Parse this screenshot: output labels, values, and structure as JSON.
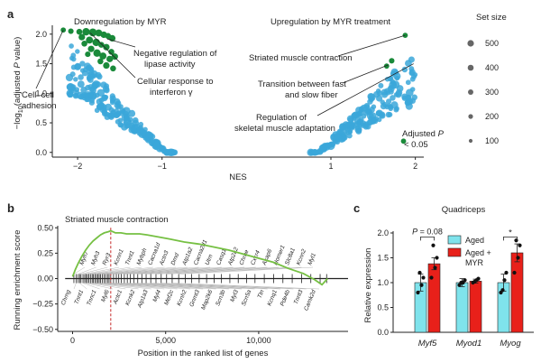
{
  "chart_data": [
    {
      "panel": "a",
      "type": "scatter",
      "xlabel": "NES",
      "ylabel": "-log10(adjusted P value)",
      "xlim": [
        -2.3,
        2.1
      ],
      "ylim": [
        -0.08,
        2.15
      ],
      "x_ticks": [
        -2,
        -1,
        1,
        2
      ],
      "y_ticks": [
        0,
        0.5,
        1.0,
        1.5,
        2.0
      ],
      "titles": {
        "left": "Downregulation by MYR",
        "right": "Upregulation by MYR treatment"
      },
      "legend": {
        "title": "Set size",
        "values": [
          500,
          400,
          300,
          200,
          100
        ],
        "position": "right"
      },
      "colors": {
        "not_significant": "#3ba7d9",
        "significant": "#1a8a3a"
      },
      "annotations": [
        {
          "text": "Negative regulation of lipase activity",
          "nes": -1.65,
          "value": 1.92
        },
        {
          "text": "Cellular response to interferon γ",
          "nes": -1.85,
          "value": 2.02
        },
        {
          "text": "Cell–cell adhesion",
          "nes": -2.17,
          "value": 2.07
        },
        {
          "text": "Striated muscle contraction",
          "nes": 1.88,
          "value": 1.98
        },
        {
          "text": "Transition between fast and slow fiber",
          "nes": 1.68,
          "value": 1.48
        },
        {
          "text": "Regulation of skeletal muscle adaptation",
          "nes": 1.98,
          "value": 1.5
        },
        {
          "text": "Adjusted P < 0.05",
          "nes": 1.86,
          "value": 0.19
        }
      ],
      "significant_points": [
        {
          "nes": -2.17,
          "value": 2.07,
          "size": 100
        },
        {
          "nes": -2.08,
          "value": 2.05,
          "size": 120
        },
        {
          "nes": -1.98,
          "value": 2.04,
          "size": 150
        },
        {
          "nes": -1.9,
          "value": 2.04,
          "size": 300
        },
        {
          "nes": -1.82,
          "value": 2.03,
          "size": 350
        },
        {
          "nes": -1.75,
          "value": 2.02,
          "size": 250
        },
        {
          "nes": -1.69,
          "value": 1.99,
          "size": 200
        },
        {
          "nes": -1.64,
          "value": 1.97,
          "size": 150
        },
        {
          "nes": -1.59,
          "value": 1.93,
          "size": 200
        },
        {
          "nes": -1.95,
          "value": 1.95,
          "size": 200
        },
        {
          "nes": -1.86,
          "value": 1.9,
          "size": 250
        },
        {
          "nes": -1.78,
          "value": 1.86,
          "size": 300
        },
        {
          "nes": -1.72,
          "value": 1.82,
          "size": 150
        },
        {
          "nes": -1.66,
          "value": 1.78,
          "size": 200
        },
        {
          "nes": -1.92,
          "value": 1.84,
          "size": 150
        },
        {
          "nes": -1.84,
          "value": 1.75,
          "size": 200
        },
        {
          "nes": -1.77,
          "value": 1.68,
          "size": 300
        },
        {
          "nes": -1.7,
          "value": 1.63,
          "size": 250
        },
        {
          "nes": -1.62,
          "value": 1.58,
          "size": 200
        },
        {
          "nes": -1.73,
          "value": 1.54,
          "size": 150
        },
        {
          "nes": -1.66,
          "value": 1.47,
          "size": 200
        },
        {
          "nes": -1.58,
          "value": 1.42,
          "size": 150
        },
        {
          "nes": -1.6,
          "value": 1.7,
          "size": 150
        },
        {
          "nes": -1.56,
          "value": 1.62,
          "size": 200
        },
        {
          "nes": -1.88,
          "value": 1.66,
          "size": 120
        },
        {
          "nes": 1.88,
          "value": 1.98,
          "size": 100
        },
        {
          "nes": 1.72,
          "value": 1.55,
          "size": 120
        },
        {
          "nes": 1.66,
          "value": 1.46,
          "size": 100
        },
        {
          "nes": 1.86,
          "value": 0.19,
          "size": 100
        }
      ]
    },
    {
      "panel": "b",
      "type": "line",
      "title": "Striated muscle contraction",
      "xlabel": "Position in the ranked list of genes",
      "ylabel": "Running enrichment score",
      "xlim": [
        -800,
        14800
      ],
      "ylim": [
        -0.52,
        0.52
      ],
      "x_ticks": [
        0,
        5000,
        10000
      ],
      "y_ticks": [
        0.5,
        0.25,
        0,
        -0.25,
        -0.5
      ],
      "peak_position": 2050,
      "colors": {
        "curve": "#76c043",
        "peak_line": "#c62828"
      },
      "series": [
        {
          "x": [
            0,
            150,
            300,
            500,
            700,
            900,
            1100,
            1300,
            1500,
            1700,
            1900,
            2050,
            2300,
            2600,
            2900,
            3200,
            3600,
            4000,
            4600,
            5200,
            6000,
            6800,
            7600,
            8400,
            9200,
            10000,
            10800,
            11600,
            12400,
            13000,
            13400,
            13700
          ],
          "values": [
            0.02,
            0.09,
            0.15,
            0.22,
            0.28,
            0.33,
            0.37,
            0.4,
            0.43,
            0.45,
            0.46,
            0.47,
            0.45,
            0.45,
            0.44,
            0.44,
            0.44,
            0.43,
            0.41,
            0.39,
            0.36,
            0.34,
            0.31,
            0.28,
            0.24,
            0.2,
            0.16,
            0.1,
            0.05,
            -0.01,
            -0.06,
            0.0
          ]
        }
      ],
      "hits": [
        70,
        190,
        300,
        380,
        450,
        560,
        650,
        720,
        800,
        880,
        960,
        1050,
        1120,
        1200,
        1280,
        1360,
        1430,
        1500,
        1600,
        1690,
        1780,
        1880,
        1960,
        2050,
        2200,
        2350,
        2480,
        2620,
        2780,
        2940,
        3100,
        3300,
        3500,
        3720,
        3950,
        4200,
        4480,
        4760,
        5050,
        5350,
        5700,
        6050,
        6400,
        6800,
        7200,
        7600,
        8000,
        8450,
        8900,
        9350,
        9800,
        10300,
        10800,
        11300,
        11800,
        12300,
        12800,
        13300,
        13650
      ],
      "genes_top": [
        "Myh7",
        "Myh3",
        "Ryr3",
        "Kcnn1",
        "Tnnt1",
        "Mybph",
        "Cacna1d",
        "Actn3",
        "Dmd",
        "Atp1a2",
        "Cacna2d1",
        "Utrn",
        "Casq1",
        "Atp2a2",
        "Chrne",
        "Cxcr4",
        "Akap6",
        "Homer1",
        "Slc8a1",
        "Kcnn2",
        "Myl1"
      ],
      "genes_bottom": [
        "Chrng",
        "Tnnt1",
        "Tnnc1",
        "Myl6",
        "Actc1",
        "Kcnk2",
        "Atp1a3",
        "Myl4",
        "Mef2c",
        "Kcnh2",
        "Gnmt3",
        "Map2k6",
        "Scn3b",
        "Myl3",
        "Scn5a",
        "Ttn",
        "Kcnq1",
        "Pde4b",
        "Tnnt3",
        "Camk2d"
      ]
    },
    {
      "panel": "c",
      "type": "bar",
      "title": "Quadriceps",
      "ylabel": "Relative expression",
      "ylim": [
        0,
        2.0
      ],
      "y_ticks": [
        0,
        0.5,
        1.0,
        1.5,
        2.0
      ],
      "categories": [
        "Myf5",
        "Myod1",
        "Myog"
      ],
      "series": [
        {
          "name": "Aged",
          "color": "#7fe3ec",
          "values": [
            1.0,
            1.0,
            1.0
          ],
          "errors": [
            0.17,
            0.08,
            0.17
          ],
          "points": [
            [
              0.8,
              0.95,
              1.1,
              1.2
            ],
            [
              0.95,
              1.0,
              1.05,
              1.0
            ],
            [
              0.8,
              1.05,
              1.2,
              0.85
            ]
          ]
        },
        {
          "name": "Aged + MYR",
          "color": "#e8201a",
          "values": [
            1.38,
            1.03,
            1.6
          ],
          "errors": [
            0.12,
            0.04,
            0.18
          ],
          "points": [
            [
              1.1,
              1.3,
              1.5,
              1.75
            ],
            [
              1.0,
              1.05,
              1.08,
              1.02
            ],
            [
              1.2,
              1.5,
              1.75,
              1.85
            ]
          ]
        }
      ],
      "significance": [
        {
          "category": "Myf5",
          "label": "P = 0.08"
        },
        {
          "category": "Myog",
          "label": "*"
        }
      ]
    }
  ],
  "labels": {
    "panel_a": "a",
    "panel_b": "b",
    "panel_c": "c",
    "legend_aged": "Aged",
    "legend_myr": "Aged +",
    "legend_myr2": "MYR"
  }
}
